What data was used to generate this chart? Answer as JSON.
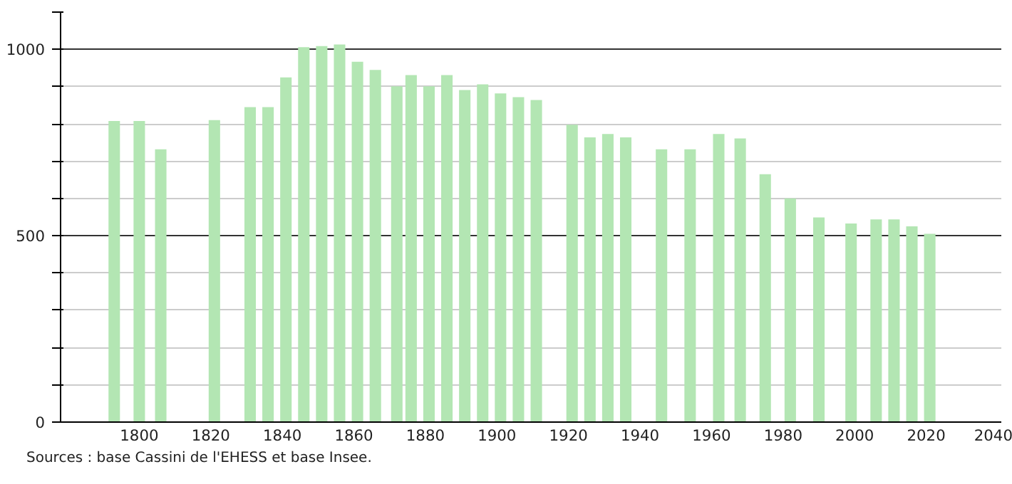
{
  "chart_data": {
    "type": "bar",
    "x": [
      1793,
      1800,
      1806,
      1821,
      1831,
      1836,
      1841,
      1846,
      1851,
      1856,
      1861,
      1866,
      1872,
      1876,
      1881,
      1886,
      1891,
      1896,
      1901,
      1906,
      1911,
      1921,
      1926,
      1931,
      1936,
      1946,
      1954,
      1962,
      1968,
      1975,
      1982,
      1990,
      1999,
      2006,
      2011,
      2016,
      2021
    ],
    "values": [
      808,
      808,
      732,
      810,
      845,
      845,
      925,
      1006,
      1009,
      1013,
      967,
      945,
      901,
      931,
      901,
      931,
      891,
      906,
      882,
      872,
      864,
      798,
      764,
      773,
      764,
      732,
      732,
      773,
      761,
      665,
      600,
      549,
      533,
      544,
      544,
      525,
      505
    ],
    "color": "#b3e6b3",
    "xlim": [
      1778,
      2041
    ],
    "ylim": [
      0,
      1100
    ],
    "xticks": [
      1800,
      1820,
      1840,
      1860,
      1880,
      1900,
      1920,
      1940,
      1960,
      1980,
      2000,
      2020,
      2040
    ],
    "yticks": [
      0,
      {
        "value": 100,
        "label": null
      },
      {
        "value": 200,
        "label": null
      },
      {
        "value": 300,
        "label": null
      },
      {
        "value": 400,
        "label": null
      },
      500,
      {
        "value": 600,
        "label": null
      },
      {
        "value": 700,
        "label": null
      },
      {
        "value": 800,
        "label": null
      },
      {
        "value": 900,
        "label": null
      },
      1000,
      {
        "value": 1100,
        "label": null
      }
    ],
    "grid": "y",
    "annotations": [
      "Sources : base Cassini de l'EHESS et base Insee."
    ]
  }
}
